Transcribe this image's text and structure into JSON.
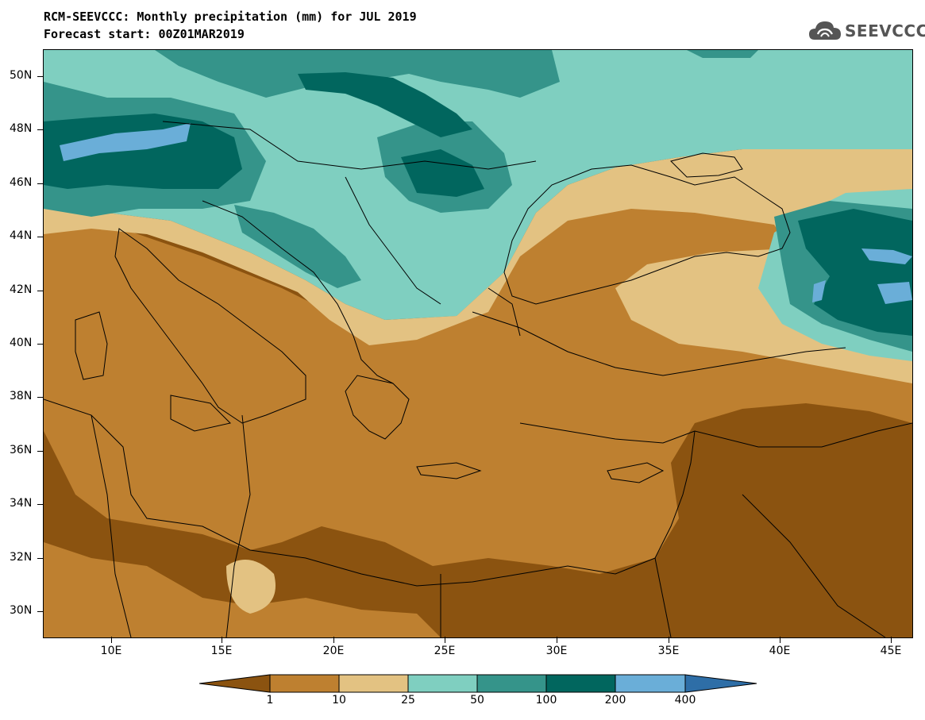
{
  "header": {
    "title_line1": "RCM-SEEVCCC: Monthly precipitation (mm) for JUL 2019",
    "title_line2": "Forecast start: 00Z01MAR2019",
    "logo_text": "SEEVCCC"
  },
  "map": {
    "lat_labels": [
      "50N",
      "48N",
      "46N",
      "44N",
      "42N",
      "40N",
      "38N",
      "36N",
      "34N",
      "32N",
      "30N"
    ],
    "lon_labels": [
      "10E",
      "15E",
      "20E",
      "25E",
      "30E",
      "35E",
      "40E",
      "45E"
    ]
  },
  "colorbar": {
    "labels": [
      "1",
      "10",
      "25",
      "50",
      "100",
      "200",
      "400"
    ],
    "colors": [
      "#8b5310",
      "#be8030",
      "#e3c282",
      "#7fcfc0",
      "#35948a",
      "#01665e",
      "#6aaed8",
      "#2e6ea7"
    ]
  }
}
